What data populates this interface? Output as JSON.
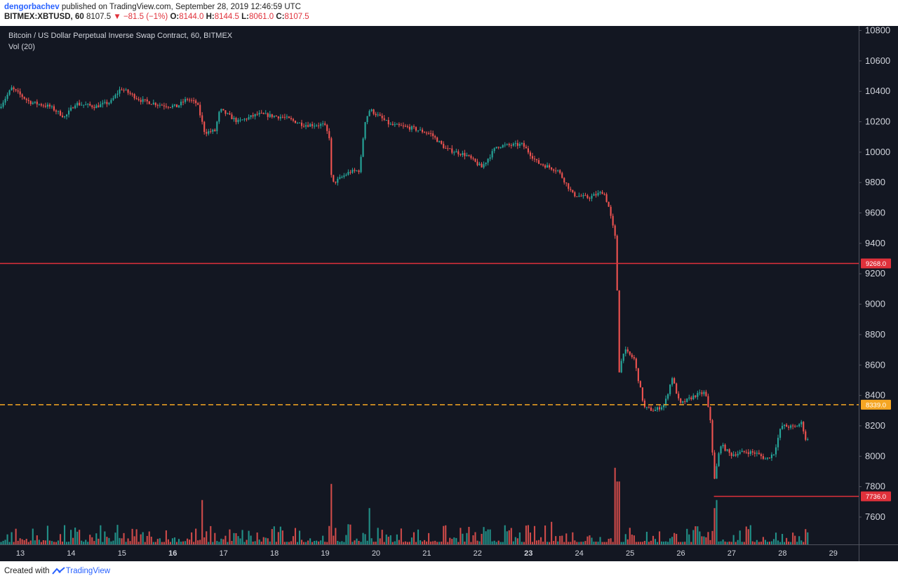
{
  "header": {
    "author": "dengorbachev",
    "published_text": "published on TradingView.com, September 28, 2019 12:46:59 UTC",
    "symbol_label": "BITMEX:XBTUSD, 60",
    "last": "8107.5",
    "change": "−81.5 (−1%)",
    "open_label": "O:",
    "open": "8144.0",
    "high_label": "H:",
    "high": "8144.5",
    "low_label": "L:",
    "low": "8061.0",
    "close_label": "C:",
    "close": "8107.5"
  },
  "footer": {
    "created_with": "Created with",
    "brand": "TradingView"
  },
  "icons": {
    "down_arrow": "triangle-down-icon",
    "brand_logo": "tradingview-logo-icon"
  },
  "colors": {
    "up": "#26a69a",
    "down": "#ef5350",
    "level_red": "#e0313b",
    "level_orange": "#f5a623",
    "background": "#131722"
  },
  "chart_data": {
    "type": "candlestick",
    "title": "Bitcoin / US Dollar Perpetual Inverse Swap Contract, 60, BITMEX",
    "indicator_label": "Vol (20)",
    "interval": "60",
    "ylim": [
      7420,
      10830
    ],
    "y_ticks": [
      "7600",
      "7800",
      "8000",
      "8200",
      "8400",
      "8600",
      "8800",
      "9000",
      "9200",
      "9400",
      "9600",
      "9800",
      "10000",
      "10200",
      "10400",
      "10600",
      "10800"
    ],
    "x_ticks": [
      {
        "label": "13",
        "day": 13,
        "bold": false
      },
      {
        "label": "14",
        "day": 14,
        "bold": false
      },
      {
        "label": "15",
        "day": 15,
        "bold": false
      },
      {
        "label": "16",
        "day": 16,
        "bold": true
      },
      {
        "label": "17",
        "day": 17,
        "bold": false
      },
      {
        "label": "18",
        "day": 18,
        "bold": false
      },
      {
        "label": "19",
        "day": 19,
        "bold": false
      },
      {
        "label": "20",
        "day": 20,
        "bold": false
      },
      {
        "label": "21",
        "day": 21,
        "bold": false
      },
      {
        "label": "22",
        "day": 22,
        "bold": false
      },
      {
        "label": "23",
        "day": 23,
        "bold": true
      },
      {
        "label": "24",
        "day": 24,
        "bold": false
      },
      {
        "label": "25",
        "day": 25,
        "bold": false
      },
      {
        "label": "26",
        "day": 26,
        "bold": false
      },
      {
        "label": "27",
        "day": 27,
        "bold": false
      },
      {
        "label": "28",
        "day": 28,
        "bold": false
      },
      {
        "label": "29",
        "day": 29,
        "bold": false
      }
    ],
    "x_range_days": [
      12.6,
      29.5
    ],
    "price_path": [
      {
        "day": 12.6,
        "price": 10290
      },
      {
        "day": 12.85,
        "price": 10420
      },
      {
        "day": 13.2,
        "price": 10330
      },
      {
        "day": 13.6,
        "price": 10300
      },
      {
        "day": 13.9,
        "price": 10230
      },
      {
        "day": 14.1,
        "price": 10320
      },
      {
        "day": 14.5,
        "price": 10300
      },
      {
        "day": 14.8,
        "price": 10330
      },
      {
        "day": 15.0,
        "price": 10420
      },
      {
        "day": 15.4,
        "price": 10340
      },
      {
        "day": 15.8,
        "price": 10310
      },
      {
        "day": 16.1,
        "price": 10300
      },
      {
        "day": 16.3,
        "price": 10350
      },
      {
        "day": 16.5,
        "price": 10320
      },
      {
        "day": 16.65,
        "price": 10130
      },
      {
        "day": 16.85,
        "price": 10140
      },
      {
        "day": 16.95,
        "price": 10280
      },
      {
        "day": 17.3,
        "price": 10200
      },
      {
        "day": 17.7,
        "price": 10250
      },
      {
        "day": 18.2,
        "price": 10230
      },
      {
        "day": 18.6,
        "price": 10180
      },
      {
        "day": 19.0,
        "price": 10180
      },
      {
        "day": 19.1,
        "price": 10100
      },
      {
        "day": 19.15,
        "price": 9790
      },
      {
        "day": 19.5,
        "price": 9870
      },
      {
        "day": 19.7,
        "price": 9880
      },
      {
        "day": 19.8,
        "price": 10200
      },
      {
        "day": 19.9,
        "price": 10280
      },
      {
        "day": 20.3,
        "price": 10180
      },
      {
        "day": 20.7,
        "price": 10160
      },
      {
        "day": 21.1,
        "price": 10120
      },
      {
        "day": 21.4,
        "price": 10020
      },
      {
        "day": 21.8,
        "price": 9980
      },
      {
        "day": 22.1,
        "price": 9900
      },
      {
        "day": 22.4,
        "price": 10040
      },
      {
        "day": 22.9,
        "price": 10050
      },
      {
        "day": 23.2,
        "price": 9930
      },
      {
        "day": 23.6,
        "price": 9880
      },
      {
        "day": 23.9,
        "price": 9720
      },
      {
        "day": 24.2,
        "price": 9700
      },
      {
        "day": 24.5,
        "price": 9740
      },
      {
        "day": 24.6,
        "price": 9640
      },
      {
        "day": 24.72,
        "price": 9450
      },
      {
        "day": 24.76,
        "price": 9380
      },
      {
        "day": 24.78,
        "price": 8520
      },
      {
        "day": 24.9,
        "price": 8700
      },
      {
        "day": 25.1,
        "price": 8640
      },
      {
        "day": 25.3,
        "price": 8320
      },
      {
        "day": 25.5,
        "price": 8300
      },
      {
        "day": 25.7,
        "price": 8340
      },
      {
        "day": 25.85,
        "price": 8520
      },
      {
        "day": 26.0,
        "price": 8340
      },
      {
        "day": 26.3,
        "price": 8400
      },
      {
        "day": 26.5,
        "price": 8420
      },
      {
        "day": 26.6,
        "price": 8240
      },
      {
        "day": 26.68,
        "price": 7840
      },
      {
        "day": 26.8,
        "price": 8080
      },
      {
        "day": 27.0,
        "price": 8010
      },
      {
        "day": 27.3,
        "price": 8030
      },
      {
        "day": 27.5,
        "price": 8020
      },
      {
        "day": 27.7,
        "price": 7980
      },
      {
        "day": 27.85,
        "price": 8020
      },
      {
        "day": 28.0,
        "price": 8200
      },
      {
        "day": 28.25,
        "price": 8190
      },
      {
        "day": 28.4,
        "price": 8220
      },
      {
        "day": 28.48,
        "price": 8107.5
      }
    ],
    "volume_spikes": [
      {
        "day": 16.55,
        "value": 0.55
      },
      {
        "day": 19.1,
        "value": 0.75
      },
      {
        "day": 19.85,
        "value": 0.45
      },
      {
        "day": 23.45,
        "value": 0.28
      },
      {
        "day": 24.75,
        "value": 0.78
      },
      {
        "day": 24.7,
        "value": 0.95
      },
      {
        "day": 26.65,
        "value": 0.45
      },
      {
        "day": 26.7,
        "value": 0.55
      }
    ],
    "levels": [
      {
        "label": "9268.0",
        "price": 9268.0,
        "style": "solid",
        "color": "#e0313b",
        "from_day": 12.6
      },
      {
        "label": "8339.0",
        "price": 8339.0,
        "style": "dashed",
        "color": "#f5a623",
        "from_day": 12.6
      },
      {
        "label": "7736.0",
        "price": 7736.0,
        "style": "solid",
        "color": "#e0313b",
        "from_day": 26.65
      }
    ]
  }
}
